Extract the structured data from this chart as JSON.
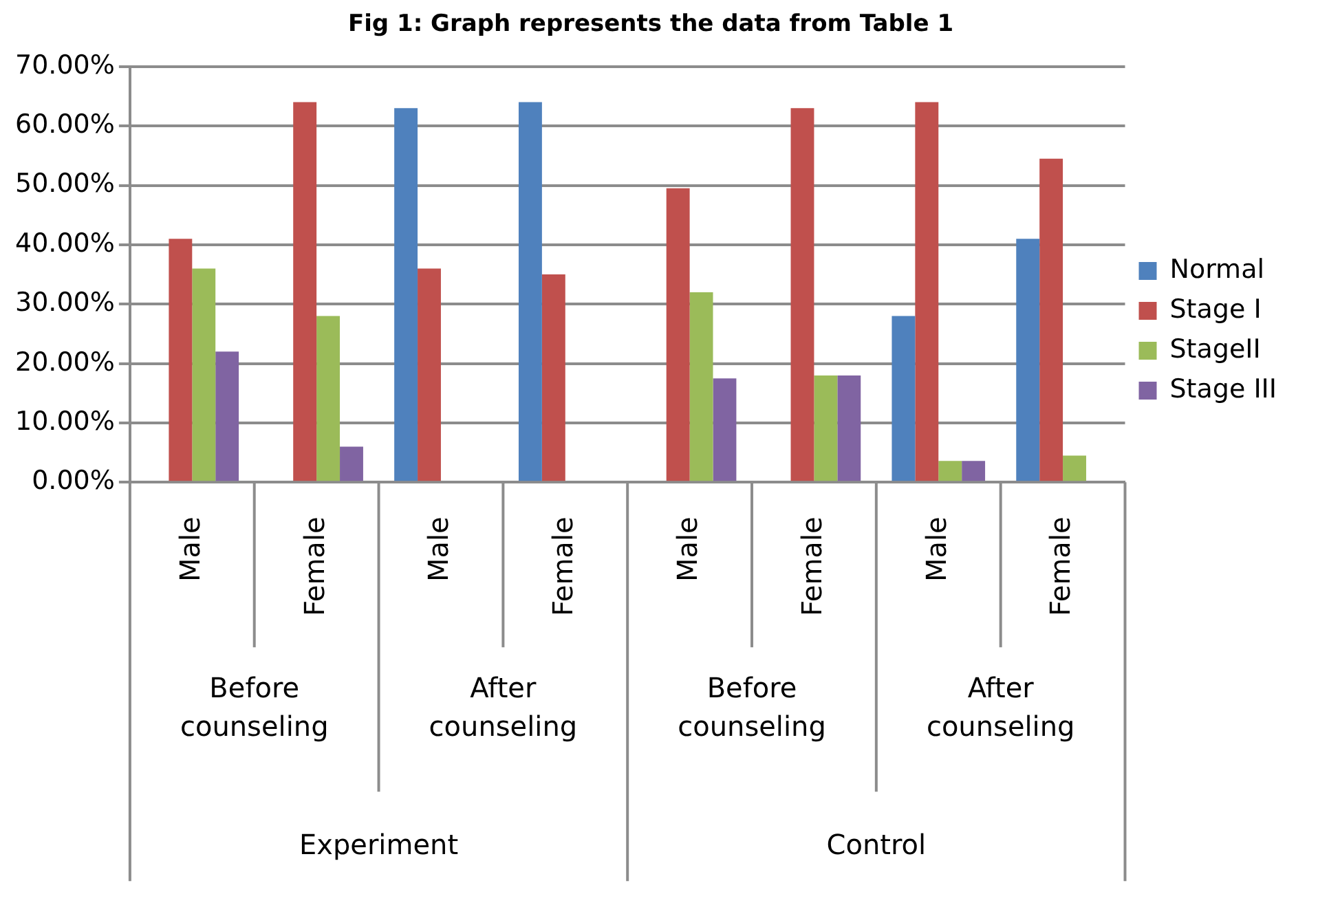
{
  "chart_data": {
    "type": "bar",
    "title": "Fig 1: Graph represents the data from Table 1",
    "categories": [
      "Male",
      "Female",
      "Male",
      "Female",
      "Male",
      "Female",
      "Male",
      "Female"
    ],
    "series": [
      {
        "name": "Normal",
        "color": "#4f81bd",
        "values": [
          0,
          0,
          63,
          64,
          0,
          0,
          28,
          41
        ]
      },
      {
        "name": "Stage I",
        "color": "#c0504d",
        "values": [
          41,
          64,
          36,
          35,
          49.5,
          63,
          64,
          54.5
        ]
      },
      {
        "name": "StageII",
        "color": "#9bbb59",
        "values": [
          36,
          28,
          0,
          0,
          32,
          18,
          3.6,
          4.5
        ]
      },
      {
        "name": "Stage III",
        "color": "#8064a2",
        "values": [
          22,
          6,
          0,
          0,
          17.5,
          18,
          3.6,
          0
        ]
      }
    ],
    "annotations": [
      "Before counseling",
      "After counseling",
      "Before counseling",
      "After counseling",
      "Experiment",
      "Control"
    ],
    "ylim": [
      0,
      70
    ],
    "yticks": [
      {
        "value": 0,
        "label": "0.00%"
      },
      {
        "value": 10,
        "label": "10.00%"
      },
      {
        "value": 20,
        "label": "20.00%"
      },
      {
        "value": 30,
        "label": "30.00%"
      },
      {
        "value": 40,
        "label": "40.00%"
      },
      {
        "value": 50,
        "label": "50.00%"
      },
      {
        "value": 60,
        "label": "60.00%"
      },
      {
        "value": 70,
        "label": "70.00%"
      }
    ],
    "grid": "y",
    "legend": "right"
  }
}
